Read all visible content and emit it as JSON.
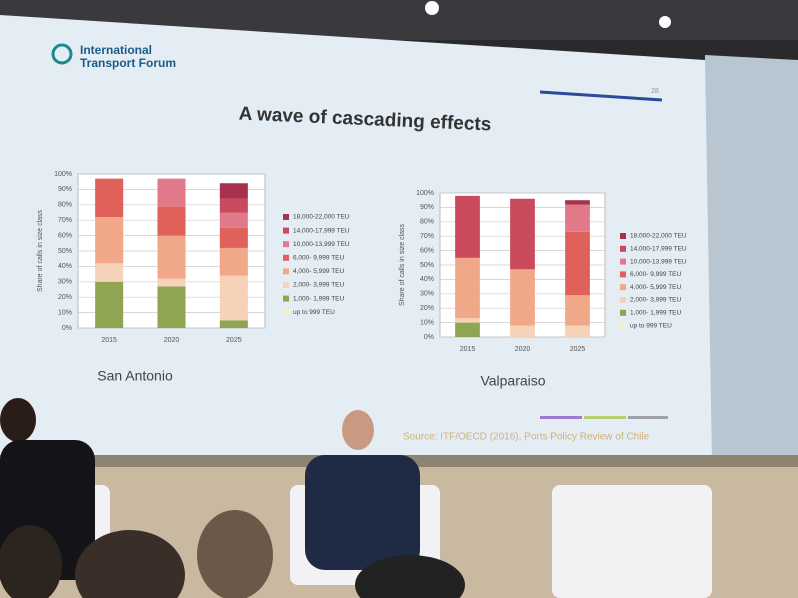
{
  "slide": {
    "logo": "International Transport Forum",
    "page_number": "28",
    "title": "A wave of cascading effects",
    "source": "Source: ITF/OECD (2016), Ports Policy Review of Chile"
  },
  "chart_data": [
    {
      "type": "stacked-bar",
      "title": "San Antonio",
      "y_label": "Share of calls in size class",
      "categories": [
        "2015",
        "2020",
        "2025"
      ],
      "ylim": [
        0,
        100
      ],
      "yticks": [
        {
          "value": 0,
          "label": "0%"
        },
        {
          "value": 10,
          "label": "10%"
        },
        {
          "value": 20,
          "label": "20%"
        },
        {
          "value": 30,
          "label": "30%"
        },
        {
          "value": 40,
          "label": "40%"
        },
        {
          "value": 50,
          "label": "50%"
        },
        {
          "value": 60,
          "label": "60%"
        },
        {
          "value": 70,
          "label": "70%"
        },
        {
          "value": 80,
          "label": "80%"
        },
        {
          "value": 90,
          "label": "90%"
        },
        {
          "value": 100,
          "label": "100%"
        }
      ],
      "grid": true,
      "series": [
        {
          "name": "18,000-22,000 TEU",
          "color": "#a8324e",
          "values": [
            0,
            0,
            10
          ]
        },
        {
          "name": "14,000-17,999 TEU",
          "color": "#c94a5c",
          "values": [
            0,
            0,
            9
          ]
        },
        {
          "name": "10,000-13,999 TEU",
          "color": "#e07a8a",
          "values": [
            0,
            18,
            10
          ]
        },
        {
          "name": "6,000- 9,999 TEU",
          "color": "#e0605a",
          "values": [
            25,
            19,
            13
          ]
        },
        {
          "name": "4,000- 5,999 TEU",
          "color": "#f0a888",
          "values": [
            30,
            28,
            18
          ]
        },
        {
          "name": "2,000- 3,999 TEU",
          "color": "#f5d2b8",
          "values": [
            12,
            5,
            29
          ]
        },
        {
          "name": "1,000- 1,999 TEU",
          "color": "#8fa552",
          "values": [
            30,
            27,
            5
          ]
        },
        {
          "name": "up to 999 TEU",
          "color": "#f2f0c4",
          "values": [
            0,
            0,
            0
          ]
        }
      ]
    },
    {
      "type": "stacked-bar",
      "title": "Valparaiso",
      "y_label": "Share of calls in size class",
      "categories": [
        "2015",
        "2020",
        "2025"
      ],
      "ylim": [
        0,
        100
      ],
      "yticks": [
        {
          "value": 0,
          "label": "0%"
        },
        {
          "value": 10,
          "label": "10%"
        },
        {
          "value": 20,
          "label": "20%"
        },
        {
          "value": 30,
          "label": "30%"
        },
        {
          "value": 40,
          "label": "40%"
        },
        {
          "value": 50,
          "label": "50%"
        },
        {
          "value": 60,
          "label": "60%"
        },
        {
          "value": 70,
          "label": "70%"
        },
        {
          "value": 80,
          "label": "80%"
        },
        {
          "value": 90,
          "label": "90%"
        },
        {
          "value": 100,
          "label": "100%"
        }
      ],
      "grid": true,
      "series": [
        {
          "name": "18,000-22,000 TEU",
          "color": "#a8324e",
          "values": [
            0,
            0,
            3
          ]
        },
        {
          "name": "14,000-17,999 TEU",
          "color": "#c94a5c",
          "values": [
            43,
            49,
            0
          ]
        },
        {
          "name": "10,000-13,999 TEU",
          "color": "#e07a8a",
          "values": [
            0,
            0,
            19
          ]
        },
        {
          "name": "6,000- 9,999 TEU",
          "color": "#e0605a",
          "values": [
            0,
            0,
            44
          ]
        },
        {
          "name": "4,000- 5,999 TEU",
          "color": "#f0a888",
          "values": [
            42,
            39,
            21
          ]
        },
        {
          "name": "2,000- 3,999 TEU",
          "color": "#f5d2b8",
          "values": [
            3,
            8,
            8
          ]
        },
        {
          "name": "1,000- 1,999 TEU",
          "color": "#8fa552",
          "values": [
            10,
            0,
            0
          ]
        },
        {
          "name": "up to 999 TEU",
          "color": "#f2f0c4",
          "values": [
            0,
            0,
            0
          ]
        }
      ]
    }
  ]
}
